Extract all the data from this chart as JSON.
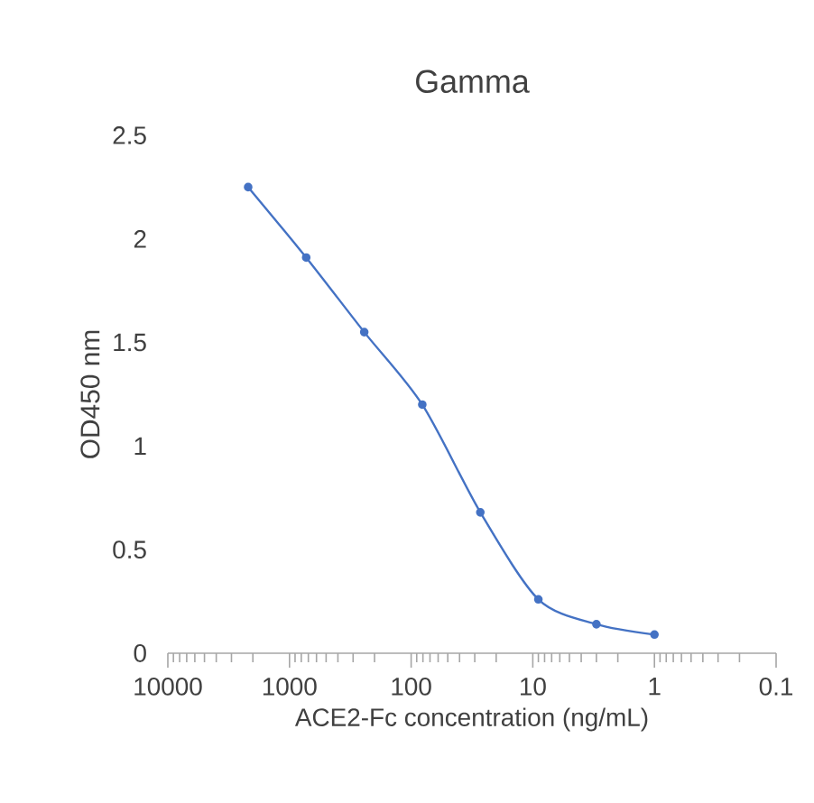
{
  "chart_data": {
    "type": "line",
    "title": "Gamma",
    "xlabel": "ACE2-Fc concentration (ng/mL)",
    "ylabel": "OD450 nm",
    "log": "x",
    "x": [
      2187,
      729,
      243,
      81,
      27,
      9,
      3,
      1
    ],
    "series": [
      {
        "color": "#4472c4",
        "values": [
          2.25,
          1.91,
          1.55,
          1.2,
          0.68,
          0.26,
          0.14,
          0.09
        ]
      }
    ],
    "xlim": [
      10000,
      0.1
    ],
    "xticks": [
      10000,
      1000,
      100,
      10,
      1,
      0.1
    ],
    "ylim": [
      0,
      2.5
    ],
    "yticks": [
      0,
      0.5,
      1,
      1.5,
      2,
      2.5
    ],
    "marker": "circle",
    "line_style": "solid"
  }
}
